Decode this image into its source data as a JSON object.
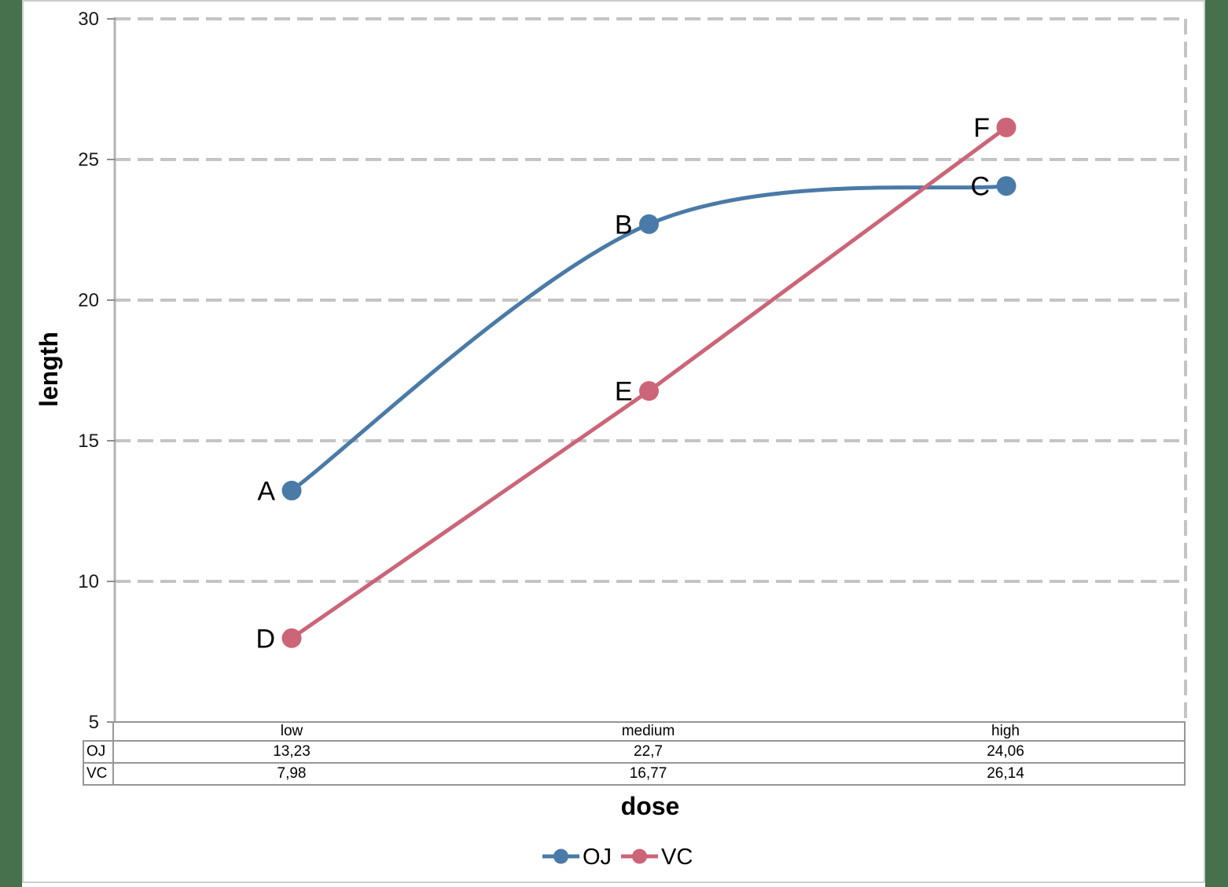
{
  "page": {
    "background_color": "#47704d",
    "surface_color": "#ffffff"
  },
  "chart_data": {
    "type": "line",
    "title": "",
    "xlabel": "dose",
    "ylabel": "length",
    "categories": [
      "low",
      "medium",
      "high"
    ],
    "series": [
      {
        "name": "OJ",
        "color": "#4a7aa7",
        "values": [
          13.23,
          22.7,
          24.06
        ],
        "values_display": [
          "13,23",
          "22,7",
          "24,06"
        ],
        "point_labels": [
          "A",
          "B",
          "C"
        ],
        "smooth": true
      },
      {
        "name": "VC",
        "color": "#cb6577",
        "values": [
          7.98,
          16.77,
          26.14
        ],
        "values_display": [
          "7,98",
          "16,77",
          "26,14"
        ],
        "point_labels": [
          "D",
          "E",
          "F"
        ],
        "smooth": false
      }
    ],
    "ylim": [
      5,
      30
    ],
    "yticks": [
      5,
      10,
      15,
      20,
      25,
      30
    ],
    "ytick_labels": [
      "5",
      "10",
      "15",
      "20",
      "25",
      "30"
    ],
    "grid": "dashed-horizontal",
    "legend_position": "bottom",
    "data_table_shown": true
  },
  "table": {
    "column_headers": [
      "low",
      "medium",
      "high"
    ],
    "rows": [
      {
        "label": "OJ",
        "cells": [
          "13,23",
          "22,7",
          "24,06"
        ]
      },
      {
        "label": "VC",
        "cells": [
          "7,98",
          "16,77",
          "26,14"
        ]
      }
    ]
  },
  "legend": {
    "items": [
      {
        "label": "OJ",
        "color": "#4a7aa7"
      },
      {
        "label": "VC",
        "color": "#cb6577"
      }
    ]
  }
}
